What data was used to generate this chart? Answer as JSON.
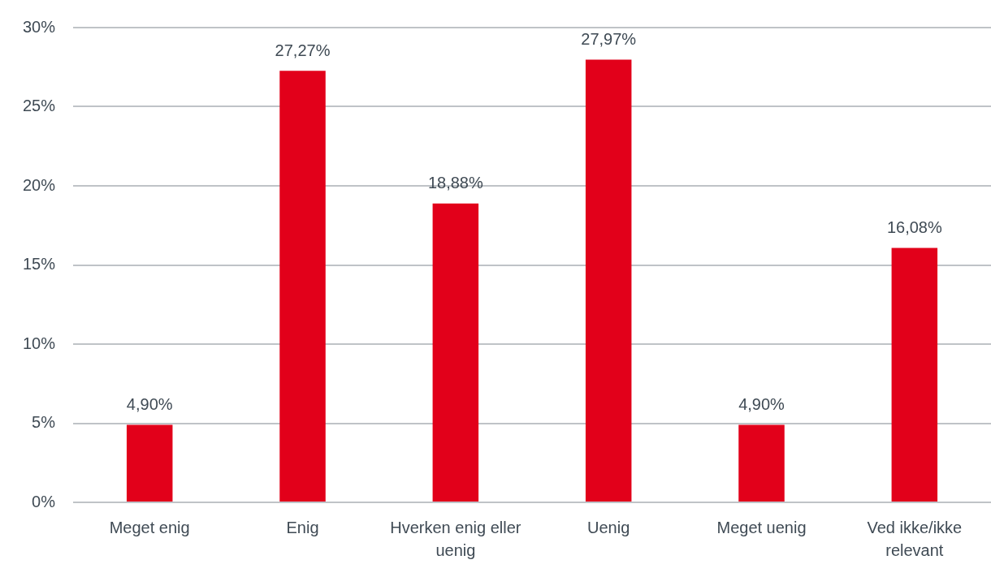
{
  "chart_data": {
    "type": "bar",
    "categories": [
      "Meget enig",
      "Enig",
      "Hverken enig eller uenig",
      "Uenig",
      "Meget uenig",
      "Ved ikke/ikke relevant"
    ],
    "values": [
      4.9,
      27.27,
      18.88,
      27.97,
      4.9,
      16.08
    ],
    "value_labels": [
      "4,90%",
      "27,27%",
      "18,88%",
      "27,97%",
      "4,90%",
      "16,08%"
    ],
    "color": "#e2001a",
    "ylim": [
      0,
      30
    ],
    "yticks": [
      {
        "value": 0,
        "label": "0%"
      },
      {
        "value": 5,
        "label": "5%"
      },
      {
        "value": 10,
        "label": "10%"
      },
      {
        "value": 15,
        "label": "15%"
      },
      {
        "value": 20,
        "label": "20%"
      },
      {
        "value": 25,
        "label": "25%"
      },
      {
        "value": 30,
        "label": "30%"
      }
    ],
    "grid": "y",
    "legend": false
  }
}
